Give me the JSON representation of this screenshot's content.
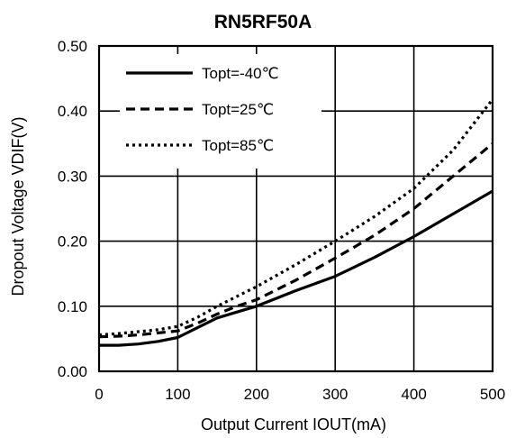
{
  "chart_data": {
    "type": "line",
    "title": "RN5RF50A",
    "xlabel": "Output Current IOUT(mA)",
    "ylabel": "Dropout Voltage VDIF(V)",
    "xlim": [
      0,
      500
    ],
    "ylim": [
      0,
      0.5
    ],
    "x_ticks": [
      0,
      100,
      200,
      300,
      400,
      500
    ],
    "x_tick_labels": [
      "0",
      "100",
      "200",
      "300",
      "400",
      "500"
    ],
    "y_ticks": [
      0,
      0.1,
      0.2,
      0.3,
      0.4,
      0.5
    ],
    "y_tick_labels": [
      "0.00",
      "0.10",
      "0.20",
      "0.30",
      "0.40",
      "0.50"
    ],
    "grid": true,
    "legend_position": "top-left",
    "series": [
      {
        "name": "Topt=-40℃",
        "style": "solid",
        "x": [
          0,
          25,
          50,
          75,
          100,
          125,
          150,
          175,
          200,
          250,
          300,
          350,
          400,
          450,
          500
        ],
        "y": [
          0.04,
          0.04,
          0.042,
          0.046,
          0.052,
          0.067,
          0.082,
          0.091,
          0.1,
          0.124,
          0.146,
          0.175,
          0.207,
          0.242,
          0.277
        ]
      },
      {
        "name": "Topt=25℃",
        "style": "dashed",
        "x": [
          0,
          25,
          50,
          75,
          100,
          125,
          150,
          175,
          200,
          250,
          300,
          350,
          400,
          450,
          500
        ],
        "y": [
          0.053,
          0.054,
          0.056,
          0.059,
          0.062,
          0.074,
          0.088,
          0.1,
          0.11,
          0.14,
          0.174,
          0.209,
          0.25,
          0.3,
          0.35
        ]
      },
      {
        "name": "Topt=85℃",
        "style": "dotted",
        "x": [
          0,
          25,
          50,
          75,
          100,
          125,
          150,
          175,
          200,
          250,
          300,
          350,
          400,
          450,
          500
        ],
        "y": [
          0.056,
          0.058,
          0.061,
          0.064,
          0.069,
          0.083,
          0.1,
          0.115,
          0.13,
          0.164,
          0.2,
          0.238,
          0.281,
          0.34,
          0.418
        ]
      }
    ]
  }
}
